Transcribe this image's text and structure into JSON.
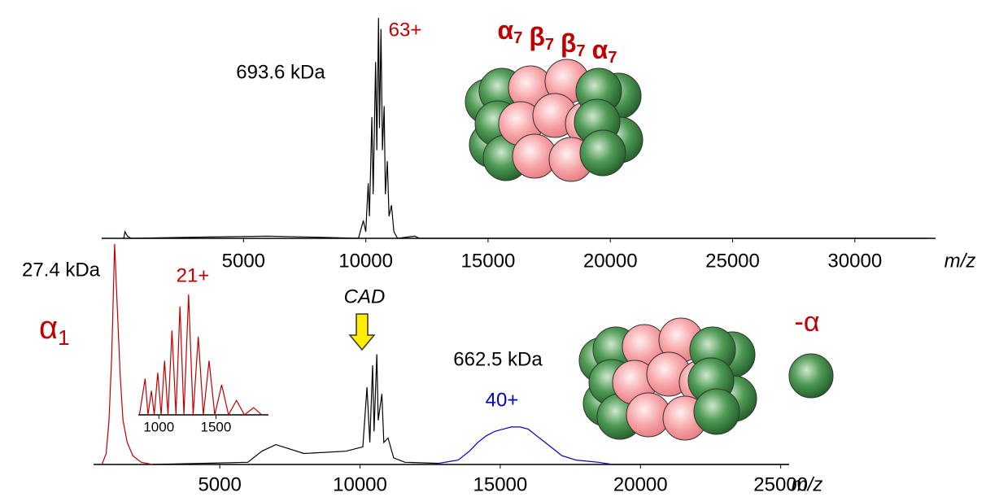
{
  "chart_data": [
    {
      "type": "line",
      "xlim": [
        -800,
        33300
      ],
      "ylim": [
        0,
        100
      ],
      "xticks": [
        5000,
        10000,
        15000,
        20000,
        25000,
        30000
      ],
      "xlabel": "m/z",
      "annotations": [
        {
          "text": "693.6 kDa",
          "color": "#000000"
        },
        {
          "text": "63+",
          "color": "#c00000"
        }
      ],
      "complex": {
        "color": "#c00000",
        "parts": [
          {
            "symbol": "α",
            "sub": "7"
          },
          {
            "symbol": "β",
            "sub": "7"
          },
          {
            "symbol": "β",
            "sub": "7"
          },
          {
            "symbol": "α",
            "sub": "7"
          }
        ]
      },
      "series": [
        {
          "color": "#000000",
          "x": [
            100,
            150,
            250,
            400,
            3000,
            6000,
            8000,
            9700,
            9900,
            10000,
            10100,
            10150,
            10250,
            10300,
            10400,
            10450,
            10520,
            10560,
            10620,
            10680,
            10750,
            10800,
            10880,
            10950,
            11050,
            11150,
            11300,
            12000,
            12200,
            33000
          ],
          "values": [
            0,
            3,
            1,
            0,
            0.5,
            1,
            0.5,
            0,
            8,
            3,
            25,
            10,
            55,
            20,
            80,
            40,
            100,
            50,
            95,
            40,
            60,
            20,
            35,
            10,
            15,
            3,
            0,
            1,
            0,
            0
          ]
        }
      ]
    },
    {
      "type": "line",
      "xlim": [
        500,
        25300
      ],
      "ylim": [
        0,
        100
      ],
      "xticks": [
        5000,
        10000,
        15000,
        20000,
        25000
      ],
      "xlabel": "m/z",
      "annotations": [
        {
          "text": "27.4 kDa",
          "color": "#000000"
        },
        {
          "text": "CAD",
          "color": "#000000"
        },
        {
          "text": "662.5 kDa",
          "color": "#000000"
        },
        {
          "text": "40+",
          "color": "#0000cc"
        },
        {
          "text": "-α",
          "color": "#c00000"
        }
      ],
      "ion": {
        "symbol": "α",
        "sub": "1",
        "color": "#c00000"
      },
      "series": [
        {
          "color": "#c00000",
          "x": [
            800,
            950,
            1050,
            1150,
            1250,
            1350,
            1450,
            1550,
            1700,
            1900,
            2200,
            2600
          ],
          "values": [
            0,
            5,
            20,
            50,
            100,
            70,
            40,
            20,
            10,
            4,
            1,
            0
          ]
        },
        {
          "color": "#000000",
          "x": [
            2600,
            6000,
            6500,
            7000,
            8000,
            9500,
            10100,
            10250,
            10350,
            10450,
            10500,
            10600,
            10650,
            10780,
            10850,
            11000,
            11200,
            11600,
            12800
          ],
          "values": [
            0,
            1,
            6,
            9,
            5,
            6,
            8,
            35,
            10,
            45,
            15,
            50,
            20,
            32,
            10,
            12,
            3,
            1,
            0.5
          ]
        },
        {
          "color": "#0000cc",
          "x": [
            12800,
            13500,
            13900,
            14200,
            14500,
            14800,
            15100,
            15400,
            15700,
            16000,
            16300,
            16600,
            16900,
            17200,
            17700,
            18500,
            19000
          ],
          "values": [
            0.5,
            2,
            6,
            10,
            13,
            15,
            16,
            17,
            17,
            16,
            13,
            10,
            7,
            4,
            2,
            1,
            0
          ]
        },
        {
          "color": "#000000",
          "x": [
            19000,
            25300
          ],
          "values": [
            0,
            0
          ]
        }
      ]
    },
    {
      "type": "line",
      "xlim": [
        820,
        1960
      ],
      "ylim": [
        0,
        100
      ],
      "xticks": [
        1000,
        1500
      ],
      "annotations": [
        {
          "text": "21+",
          "color": "#c00000"
        }
      ],
      "series": [
        {
          "color": "#c00000",
          "x": [
            830,
            880,
            905,
            935,
            960,
            990,
            1020,
            1050,
            1080,
            1115,
            1150,
            1185,
            1220,
            1260,
            1300,
            1345,
            1390,
            1440,
            1490,
            1550,
            1610,
            1680,
            1750,
            1830,
            1900
          ],
          "values": [
            0,
            30,
            0,
            20,
            0,
            35,
            0,
            45,
            0,
            70,
            0,
            90,
            0,
            100,
            0,
            65,
            0,
            45,
            0,
            25,
            0,
            12,
            0,
            6,
            0
          ]
        }
      ]
    }
  ]
}
